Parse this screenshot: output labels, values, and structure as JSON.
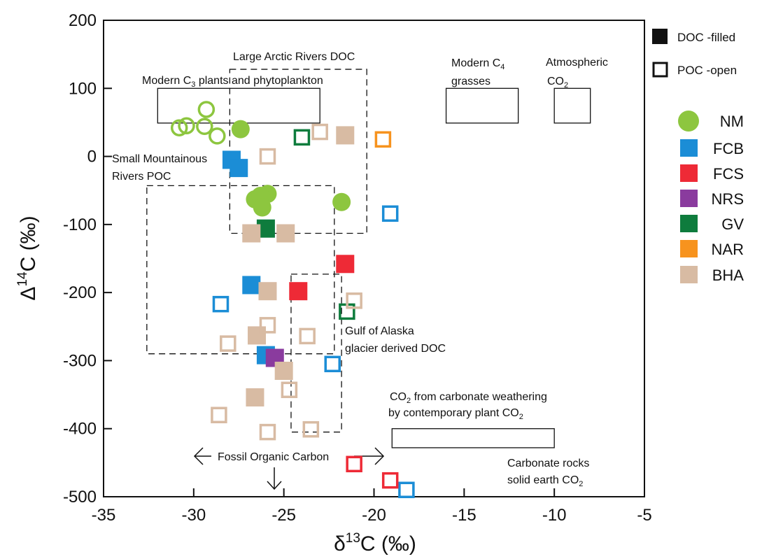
{
  "chart_data": {
    "type": "scatter",
    "xlabel": "δ¹³C (‰)",
    "ylabel": "Δ¹⁴C (‰)",
    "xlim": [
      -35,
      -5
    ],
    "ylim": [
      -500,
      200
    ],
    "x_ticks": [
      "-35",
      "-30",
      "-25",
      "-20",
      "-15",
      "-10",
      "-5"
    ],
    "y_ticks": [
      "200",
      "100",
      "0",
      "-100",
      "-200",
      "-300",
      "-400",
      "-500"
    ],
    "grid": false,
    "legend_placement": "right",
    "fill_legend": [
      {
        "label": "DOC -filled",
        "style": "filled"
      },
      {
        "label": "POC -open",
        "style": "open"
      }
    ],
    "series": [
      {
        "name": "NM",
        "marker": "circle",
        "color": "#8dc63f",
        "filled": [
          [
            -27.4,
            40
          ],
          [
            -26.6,
            -63
          ],
          [
            -25.9,
            -55
          ],
          [
            -26.3,
            -58
          ],
          [
            -26.2,
            -75
          ],
          [
            -21.8,
            -67
          ]
        ],
        "open": [
          [
            -30.8,
            42
          ],
          [
            -30.4,
            45
          ],
          [
            -29.3,
            69
          ],
          [
            -29.4,
            44
          ],
          [
            -28.7,
            30
          ]
        ]
      },
      {
        "name": "FCB",
        "marker": "square",
        "color": "#1b8dd6",
        "filled": [
          [
            -27.9,
            -5
          ],
          [
            -27.5,
            -17
          ],
          [
            -26.8,
            -189
          ],
          [
            -26.0,
            -292
          ]
        ],
        "open": [
          [
            -28.5,
            -217
          ],
          [
            -22.3,
            -305
          ],
          [
            -19.1,
            -84
          ],
          [
            -18.2,
            -490
          ]
        ]
      },
      {
        "name": "FCS",
        "marker": "square",
        "color": "#ee2a36",
        "filled": [
          [
            -24.2,
            -198
          ],
          [
            -21.6,
            -158
          ]
        ],
        "open": [
          [
            -21.1,
            -452
          ],
          [
            -19.1,
            -476
          ]
        ]
      },
      {
        "name": "NRS",
        "marker": "square",
        "color": "#8a3b9e",
        "filled": [
          [
            -25.5,
            -296
          ]
        ],
        "open": []
      },
      {
        "name": "GV",
        "marker": "square",
        "color": "#0e7c3d",
        "filled": [
          [
            -26.0,
            -106
          ]
        ],
        "open": [
          [
            -24.0,
            28
          ],
          [
            -21.5,
            -228
          ]
        ]
      },
      {
        "name": "NAR",
        "marker": "square",
        "color": "#f7931e",
        "filled": [],
        "open": [
          [
            -19.5,
            25
          ]
        ]
      },
      {
        "name": "BHA",
        "marker": "square",
        "color": "#d8bba3",
        "filled": [
          [
            -21.6,
            31
          ],
          [
            -26.8,
            -113
          ],
          [
            -24.9,
            -113
          ],
          [
            -25.9,
            -198
          ],
          [
            -26.5,
            -263
          ],
          [
            -25.0,
            -315
          ],
          [
            -26.6,
            -354
          ]
        ],
        "open": [
          [
            -23.0,
            36
          ],
          [
            -25.9,
            0
          ],
          [
            -21.1,
            -212
          ],
          [
            -25.9,
            -248
          ],
          [
            -23.7,
            -264
          ],
          [
            -28.1,
            -275
          ],
          [
            -24.7,
            -343
          ],
          [
            -25.9,
            -405
          ],
          [
            -23.5,
            -401
          ],
          [
            -28.6,
            -380
          ]
        ]
      }
    ],
    "region_boxes": [
      {
        "label": "Modern C3 plants and phytoplankton",
        "style": "solid",
        "x": [
          -32.0,
          -23.0
        ],
        "y": [
          49,
          100
        ]
      },
      {
        "label": "Modern C4 grasses",
        "style": "solid",
        "x": [
          -16.0,
          -12.0
        ],
        "y": [
          49,
          100
        ]
      },
      {
        "label": "Atmospheric CO2",
        "style": "solid",
        "x": [
          -10.0,
          -8.0
        ],
        "y": [
          49,
          100
        ]
      },
      {
        "label": "CO2 from carbonate weathering by contemporary plant CO2",
        "style": "solid",
        "x": [
          -19.0,
          -10.0
        ],
        "y": [
          -428,
          -400
        ]
      },
      {
        "label": "Large Arctic Rivers DOC",
        "style": "dashed",
        "x": [
          -28.0,
          -20.4
        ],
        "y": [
          -113,
          128
        ]
      },
      {
        "label": "Small Mountainous Rivers POC",
        "style": "dashed",
        "x": [
          -32.6,
          -22.2
        ],
        "y": [
          -290,
          -43
        ]
      },
      {
        "label": "Gulf of Alaska glacier derived DOC",
        "style": "dashed",
        "x": [
          -24.6,
          -21.8
        ],
        "y": [
          -405,
          -173
        ]
      }
    ],
    "annotations": [
      {
        "text": "Fossil Organic Carbon"
      },
      {
        "text": "Carbonate rocks solid earth CO2"
      }
    ]
  },
  "labels": {
    "modern_c3_a": "Modern C",
    "modern_c3_sub": "3",
    "modern_c3_b": " plants and phytoplankton",
    "large_arctic": "Large Arctic Rivers DOC",
    "modern_c4_a": "Modern C",
    "modern_c4_sub": "4",
    "modern_c4_b": "grasses",
    "atmospheric_a": "Atmospheric",
    "atmospheric_b": "CO",
    "atmospheric_sub": "2",
    "small_mtn_a": "Small Mountainous",
    "small_mtn_b": "Rivers POC",
    "gulf_a": "Gulf of Alaska",
    "gulf_b": "glacier derived DOC",
    "carb_weather_a": "CO",
    "carb_weather_a_sub": "2",
    "carb_weather_a_rest": " from carbonate weathering",
    "carb_weather_b": "by contemporary plant  CO",
    "carb_weather_b_sub": "2",
    "fossil": "Fossil Organic Carbon",
    "carb_rocks_a": "Carbonate rocks",
    "carb_rocks_b": "solid earth CO",
    "carb_rocks_sub": "2",
    "ylabel_delta": "Δ",
    "ylabel_sup": "14",
    "ylabel_rest": "C (‰)",
    "xlabel_delta": "δ",
    "xlabel_sup": "13",
    "xlabel_rest": "C (‰)"
  }
}
